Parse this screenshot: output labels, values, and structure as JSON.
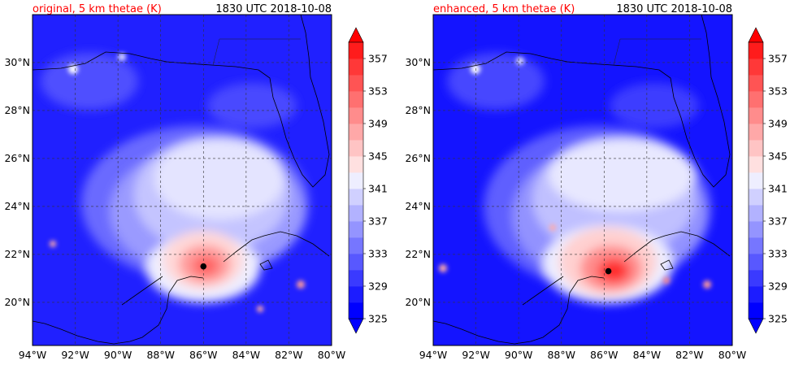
{
  "panels": [
    {
      "title_left": "original, 5 km thetae (K)",
      "title_right": "1830 UTC 2018-10-08",
      "center": {
        "lon": -86.0,
        "lat": 21.5
      }
    },
    {
      "title_left": "enhanced, 5 km thetae (K)",
      "title_right": "1830 UTC 2018-10-08",
      "center": {
        "lon": -85.8,
        "lat": 21.3
      }
    }
  ],
  "map": {
    "lon_range": [
      -94,
      -80
    ],
    "lat_range": [
      18.2,
      32.0
    ],
    "lon_ticks": [
      "94°W",
      "92°W",
      "90°W",
      "88°W",
      "86°W",
      "84°W",
      "82°W",
      "80°W"
    ],
    "lon_values": [
      -94,
      -92,
      -90,
      -88,
      -86,
      -84,
      -82,
      -80
    ],
    "lat_ticks": [
      "20°N",
      "22°N",
      "24°N",
      "26°N",
      "28°N",
      "30°N"
    ],
    "lat_values": [
      20,
      22,
      24,
      26,
      28,
      30
    ]
  },
  "colorbar": {
    "labels": [
      "325",
      "329",
      "333",
      "337",
      "341",
      "345",
      "349",
      "353",
      "357"
    ],
    "levels": [
      325,
      327,
      329,
      331,
      333,
      335,
      337,
      339,
      341,
      343,
      345,
      347,
      349,
      351,
      353,
      355,
      357,
      359
    ],
    "colors": [
      "#0000ff",
      "#1c1cff",
      "#3a3aff",
      "#5858ff",
      "#7676ff",
      "#9494ff",
      "#b2b2ff",
      "#d0d0ff",
      "#eeeeff",
      "#ffe0e0",
      "#ffc4c4",
      "#ffa8a8",
      "#ff8c8c",
      "#ff7070",
      "#ff5454",
      "#ff3838",
      "#ff1c1c"
    ],
    "under_color": "#0000ff",
    "over_color": "#ff0000"
  },
  "title_colors": {
    "left": "#ff0000",
    "right": "#000000"
  }
}
